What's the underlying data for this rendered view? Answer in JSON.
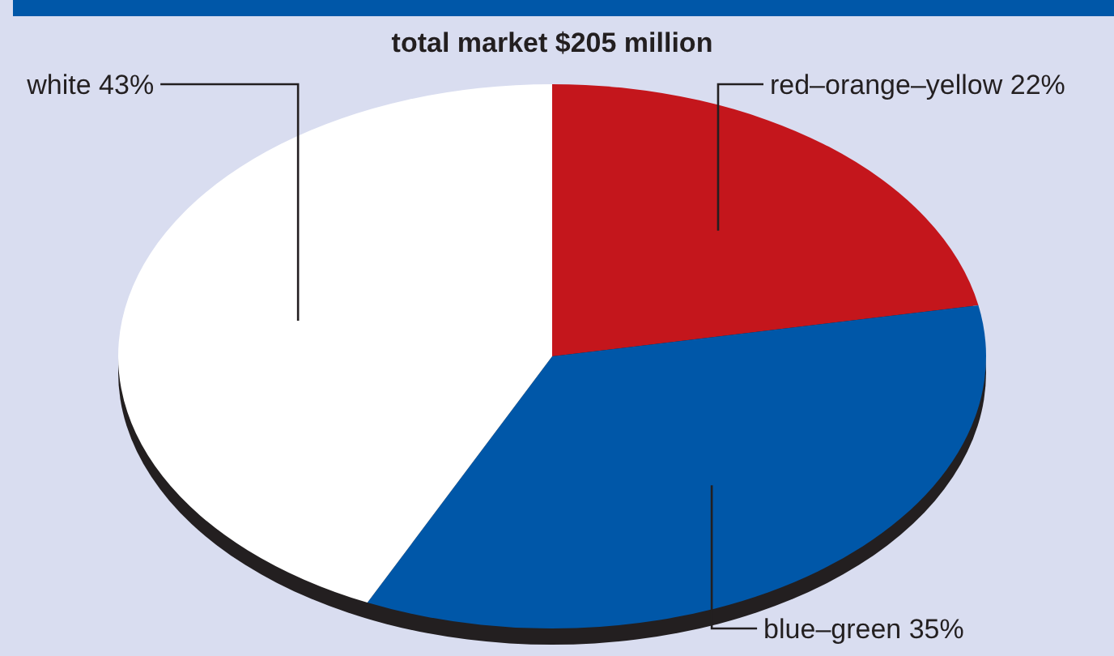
{
  "chart_data": {
    "type": "pie",
    "title": "total market $205 million",
    "categories": [
      "red–orange–yellow",
      "blue–green",
      "white"
    ],
    "values": [
      22,
      35,
      43
    ],
    "value_labels": [
      "22%",
      "35%",
      "43%"
    ],
    "colors": [
      "#c4161c",
      "#0057a8",
      "#ffffff"
    ]
  }
}
